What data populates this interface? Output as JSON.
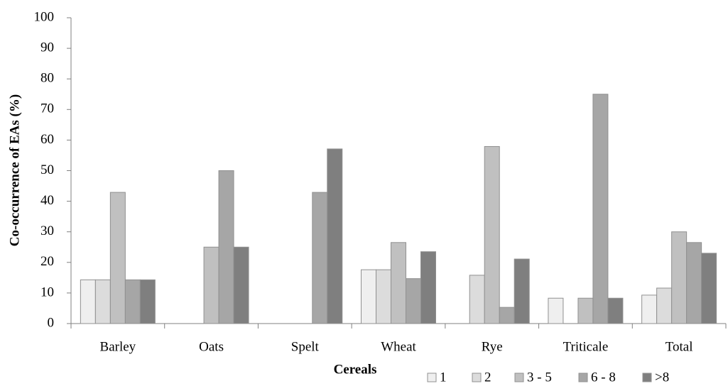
{
  "chart_data": {
    "type": "bar",
    "x_label": "Cereals",
    "y_label": "Co-occurrence of EAs (%)",
    "categories": [
      "Barley",
      "Oats",
      "Spelt",
      "Wheat",
      "Rye",
      "Triticale",
      "Total"
    ],
    "series": [
      {
        "name": "1",
        "color": "#efefef",
        "values": [
          14.3,
          0,
          0,
          17.6,
          0,
          8.3,
          9.3
        ]
      },
      {
        "name": "2",
        "color": "#dcdcdc",
        "values": [
          14.3,
          0,
          0,
          17.6,
          15.8,
          0,
          11.6
        ]
      },
      {
        "name": "3 - 5",
        "color": "#c0c0c0",
        "values": [
          42.9,
          25,
          0,
          26.5,
          57.9,
          8.3,
          30
        ]
      },
      {
        "name": "6 - 8",
        "color": "#a6a6a6",
        "values": [
          14.3,
          50,
          42.9,
          14.7,
          5.3,
          75,
          26.5
        ]
      },
      {
        "name": ">8",
        "color": "#7f7f7f",
        "values": [
          14.3,
          25,
          57.1,
          23.5,
          21.1,
          8.3,
          23
        ]
      }
    ],
    "ylim": [
      0,
      100
    ],
    "yticks": [
      0,
      10,
      20,
      30,
      40,
      50,
      60,
      70,
      80,
      90,
      100
    ],
    "grid": false,
    "legend": "bottom-right"
  }
}
